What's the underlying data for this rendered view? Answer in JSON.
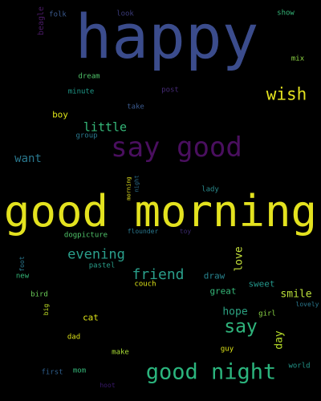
{
  "words": [
    {
      "text": "happy",
      "color": "#3b4c8c"
    },
    {
      "text": "good morning",
      "color": "#e3e21f"
    },
    {
      "text": "say good",
      "color": "#4a0f5f"
    },
    {
      "text": "good night",
      "color": "#2bb47d"
    },
    {
      "text": "wish",
      "color": "#e3e21f"
    },
    {
      "text": "say",
      "color": "#2fb47c"
    },
    {
      "text": "friend",
      "color": "#2a9f8b"
    },
    {
      "text": "evening",
      "color": "#2a9f8b"
    },
    {
      "text": "little",
      "color": "#35b779"
    },
    {
      "text": "want",
      "color": "#2a788e"
    },
    {
      "text": "smile",
      "color": "#bde33a"
    },
    {
      "text": "love",
      "color": "#c6e23b"
    },
    {
      "text": "hope",
      "color": "#2ca282"
    },
    {
      "text": "day",
      "color": "#b8de2a"
    },
    {
      "text": "draw",
      "color": "#27838e"
    },
    {
      "text": "sweet",
      "color": "#23968a"
    },
    {
      "text": "great",
      "color": "#35b779"
    },
    {
      "text": "cat",
      "color": "#dde318"
    },
    {
      "text": "boy",
      "color": "#dde318"
    },
    {
      "text": "dream",
      "color": "#50c46a"
    },
    {
      "text": "minute",
      "color": "#1f9a8a"
    },
    {
      "text": "group",
      "color": "#2a788e"
    },
    {
      "text": "take",
      "color": "#3b5a8e"
    },
    {
      "text": "post",
      "color": "#452a75"
    },
    {
      "text": "look",
      "color": "#3b3b7a"
    },
    {
      "text": "folk",
      "color": "#3b5a8e"
    },
    {
      "text": "show",
      "color": "#35b779"
    },
    {
      "text": "mix",
      "color": "#8fd744"
    },
    {
      "text": "beagle",
      "color": "#4a1a66"
    },
    {
      "text": "morning",
      "color": "#e3e21f"
    },
    {
      "text": "night",
      "color": "#2c6f8e"
    },
    {
      "text": "lady",
      "color": "#2a8a8c"
    },
    {
      "text": "dogpicture",
      "color": "#50c46a"
    },
    {
      "text": "flounder",
      "color": "#2a788e"
    },
    {
      "text": "toy",
      "color": "#3b2a6e"
    },
    {
      "text": "foot",
      "color": "#2a788e"
    },
    {
      "text": "new",
      "color": "#35b779"
    },
    {
      "text": "pastel",
      "color": "#2a9f8b"
    },
    {
      "text": "couch",
      "color": "#dde318"
    },
    {
      "text": "bird",
      "color": "#6cce59"
    },
    {
      "text": "big",
      "color": "#c0df25"
    },
    {
      "text": "girl",
      "color": "#8bd646"
    },
    {
      "text": "lovely",
      "color": "#2a788e"
    },
    {
      "text": "dad",
      "color": "#dde318"
    },
    {
      "text": "make",
      "color": "#a8db34"
    },
    {
      "text": "guy",
      "color": "#dde318"
    },
    {
      "text": "first",
      "color": "#2f5f8e"
    },
    {
      "text": "mom",
      "color": "#35b779"
    },
    {
      "text": "world",
      "color": "#23968a"
    },
    {
      "text": "hoot",
      "color": "#3b1a6e"
    }
  ]
}
